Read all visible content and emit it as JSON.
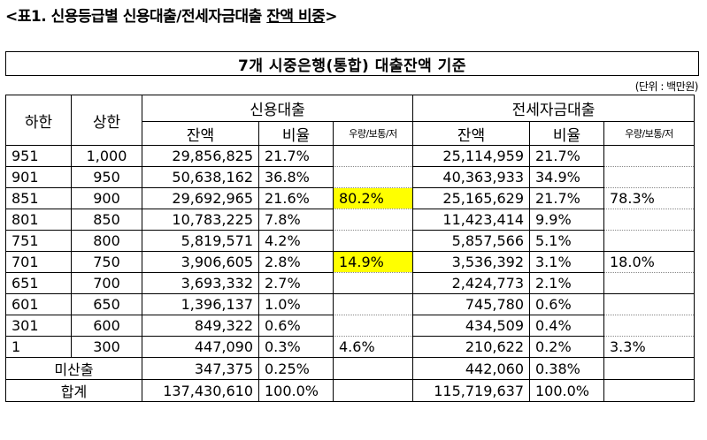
{
  "title": {
    "prefix": "<표1. 신용등급별 신용대출/전세자금대출 ",
    "underlined": "잔액 비중",
    "suffix": ">"
  },
  "banner": "7개 시중은행(통합) 대출잔액 기준",
  "unit": "(단위 : 백만원)",
  "headers": {
    "lower": "하한",
    "upper": "상한",
    "credit_loan": "신용대출",
    "jeonse_loan": "전세자금대출",
    "balance": "잔액",
    "ratio": "비율",
    "grade_group": "우량/보통/저"
  },
  "rows": [
    {
      "lower": "951",
      "upper": "1,000",
      "cl_bal": "29,856,825",
      "cl_ratio": "21.7%",
      "cl_grp": "",
      "jl_bal": "25,114,959",
      "jl_ratio": "21.7%",
      "jl_grp": ""
    },
    {
      "lower": "901",
      "upper": "950",
      "cl_bal": "50,638,162",
      "cl_ratio": "36.8%",
      "cl_grp": "",
      "jl_bal": "40,363,933",
      "jl_ratio": "34.9%",
      "jl_grp": ""
    },
    {
      "lower": "851",
      "upper": "900",
      "cl_bal": "29,692,965",
      "cl_ratio": "21.6%",
      "cl_grp": "80.2%",
      "jl_bal": "25,165,629",
      "jl_ratio": "21.7%",
      "jl_grp": "78.3%"
    },
    {
      "lower": "801",
      "upper": "850",
      "cl_bal": "10,783,225",
      "cl_ratio": "7.8%",
      "cl_grp": "",
      "jl_bal": "11,423,414",
      "jl_ratio": "9.9%",
      "jl_grp": ""
    },
    {
      "lower": "751",
      "upper": "800",
      "cl_bal": "5,819,571",
      "cl_ratio": "4.2%",
      "cl_grp": "",
      "jl_bal": "5,857,566",
      "jl_ratio": "5.1%",
      "jl_grp": ""
    },
    {
      "lower": "701",
      "upper": "750",
      "cl_bal": "3,906,605",
      "cl_ratio": "2.8%",
      "cl_grp": "14.9%",
      "jl_bal": "3,536,392",
      "jl_ratio": "3.1%",
      "jl_grp": "18.0%"
    },
    {
      "lower": "651",
      "upper": "700",
      "cl_bal": "3,693,332",
      "cl_ratio": "2.7%",
      "cl_grp": "",
      "jl_bal": "2,424,773",
      "jl_ratio": "2.1%",
      "jl_grp": ""
    },
    {
      "lower": "601",
      "upper": "650",
      "cl_bal": "1,396,137",
      "cl_ratio": "1.0%",
      "cl_grp": "",
      "jl_bal": "745,780",
      "jl_ratio": "0.6%",
      "jl_grp": ""
    },
    {
      "lower": "301",
      "upper": "600",
      "cl_bal": "849,322",
      "cl_ratio": "0.6%",
      "cl_grp": "",
      "jl_bal": "434,509",
      "jl_ratio": "0.4%",
      "jl_grp": ""
    },
    {
      "lower": "1",
      "upper": "300",
      "cl_bal": "447,090",
      "cl_ratio": "0.3%",
      "cl_grp": "4.6%",
      "jl_bal": "210,622",
      "jl_ratio": "0.2%",
      "jl_grp": "3.3%"
    }
  ],
  "unrated": {
    "label": "미산출",
    "cl_bal": "347,375",
    "cl_ratio": "0.25%",
    "jl_bal": "442,060",
    "jl_ratio": "0.38%"
  },
  "total": {
    "label": "합계",
    "cl_bal": "137,430,610",
    "cl_ratio": "100.0%",
    "jl_bal": "115,719,637",
    "jl_ratio": "100.0%"
  },
  "colors": {
    "highlight": "#ffff00",
    "border": "#000000"
  }
}
